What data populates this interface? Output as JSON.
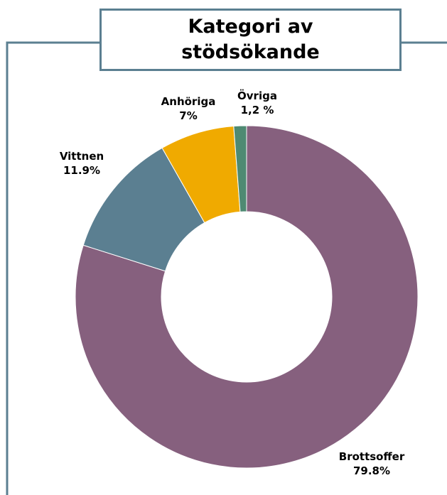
{
  "chart_data": {
    "type": "donut",
    "title": "Kategori av stödsökande",
    "categories": [
      "Brottsoffer",
      "Vittnen",
      "Anhöriga",
      "Övriga"
    ],
    "values": [
      79.8,
      11.9,
      7,
      1.2
    ],
    "value_labels": [
      "79.8%",
      "11.9%",
      "7%",
      "1,2 %"
    ],
    "colors": [
      "#86607e",
      "#5b7f91",
      "#f0aa00",
      "#4e8a72"
    ]
  }
}
